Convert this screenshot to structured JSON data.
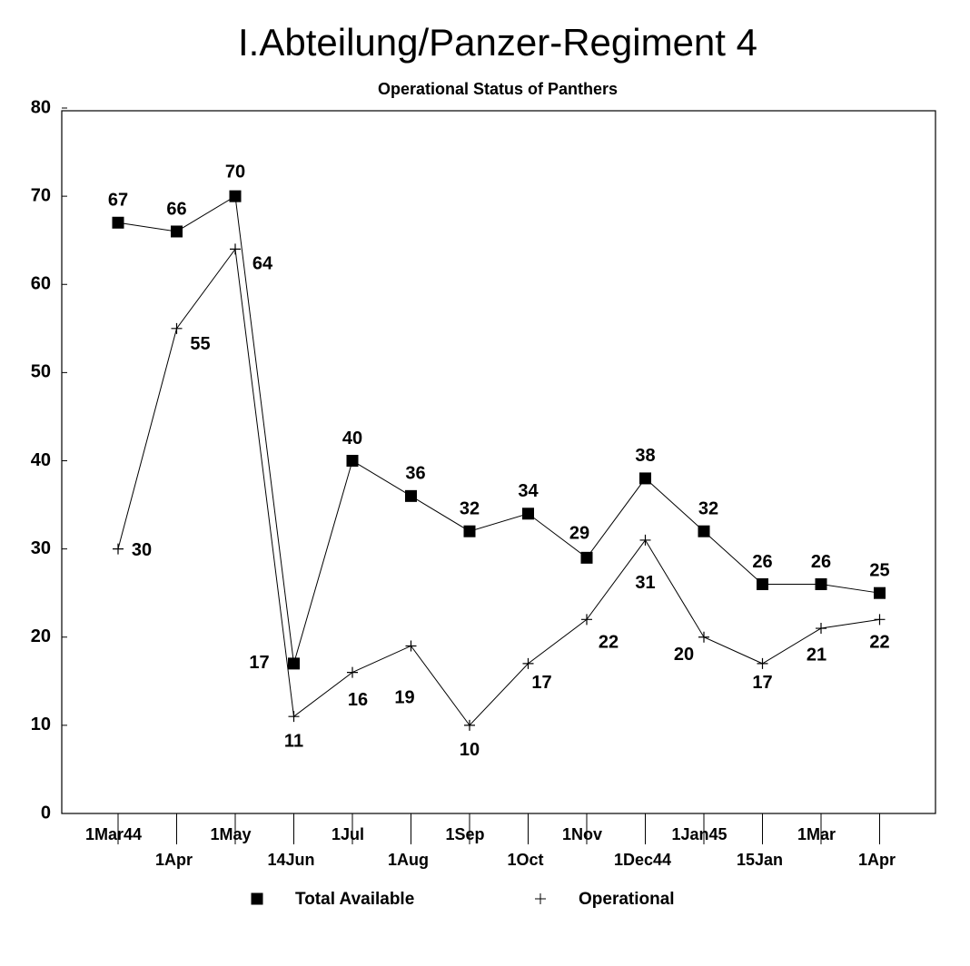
{
  "chart_data": {
    "type": "line",
    "title": "I.Abteilung/Panzer-Regiment 4",
    "subtitle": "Operational Status of Panthers",
    "categories": [
      "1Mar44",
      "1Apr",
      "1May",
      "14Jun",
      "1Jul",
      "1Aug",
      "1Sep",
      "1Oct",
      "1Nov",
      "1Dec44",
      "1Jan45",
      "15Jan",
      "1Mar",
      "1Apr"
    ],
    "series": [
      {
        "name": "Total Available",
        "color": "#000000",
        "marker": "square",
        "values": [
          67,
          66,
          70,
          17,
          40,
          36,
          32,
          34,
          29,
          38,
          32,
          26,
          26,
          25
        ]
      },
      {
        "name": "Operational",
        "color": "#000000",
        "marker": "plus",
        "values": [
          30,
          55,
          64,
          11,
          16,
          19,
          10,
          17,
          22,
          31,
          20,
          17,
          21,
          22
        ]
      }
    ],
    "ylim": [
      0,
      80
    ],
    "yticks": [
      0,
      10,
      20,
      30,
      40,
      50,
      60,
      70,
      80
    ],
    "grid": false,
    "legend": "bottom"
  }
}
